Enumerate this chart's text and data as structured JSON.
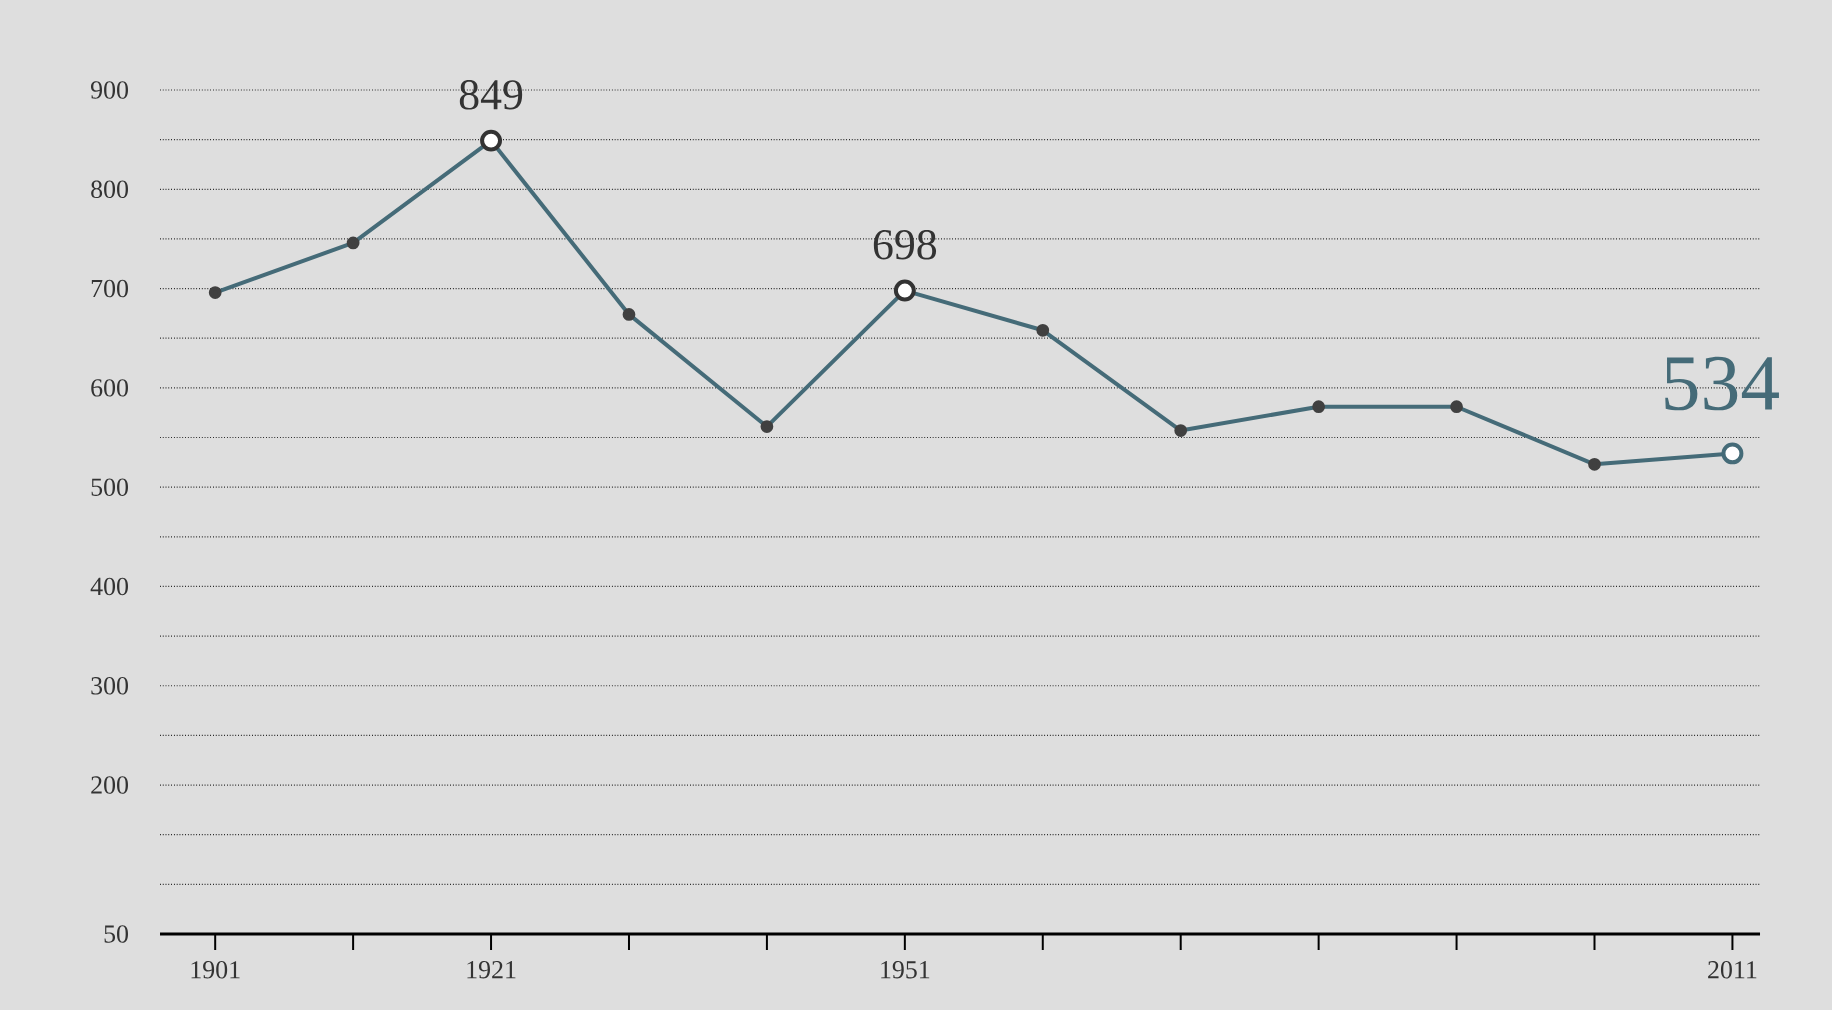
{
  "chart_data": {
    "type": "line",
    "x": [
      1901,
      1911,
      1921,
      1931,
      1941,
      1951,
      1961,
      1971,
      1981,
      1991,
      2001,
      2011
    ],
    "values": [
      696,
      746,
      849,
      674,
      561,
      698,
      658,
      557,
      581,
      581,
      523,
      534
    ],
    "value_labels": [
      null,
      null,
      "849",
      null,
      null,
      "698",
      null,
      null,
      null,
      null,
      null,
      "534"
    ],
    "color": "#456b78",
    "marker": "circle",
    "grid": "y",
    "xlim": [
      1897,
      2013
    ],
    "xticks": [
      1901,
      {
        "value": 1911,
        "label": null
      },
      1921,
      {
        "value": 1931,
        "label": null
      },
      {
        "value": 1941,
        "label": null
      },
      1951,
      {
        "value": 1961,
        "label": null
      },
      {
        "value": 1971,
        "label": null
      },
      {
        "value": 1981,
        "label": null
      },
      {
        "value": 1991,
        "label": null
      },
      {
        "value": 2001,
        "label": null
      },
      2011
    ],
    "ylim": [
      50,
      900
    ],
    "yticks": [
      50,
      {
        "value": 100,
        "label": null
      },
      {
        "value": 150,
        "label": null
      },
      200,
      {
        "value": 250,
        "label": null
      },
      300,
      {
        "value": 350,
        "label": null
      },
      400,
      {
        "value": 450,
        "label": null
      },
      500,
      {
        "value": 550,
        "label": null
      },
      600,
      {
        "value": 650,
        "label": null
      },
      700,
      {
        "value": 750,
        "label": null
      },
      800,
      {
        "value": 850,
        "label": null
      },
      900
    ]
  }
}
